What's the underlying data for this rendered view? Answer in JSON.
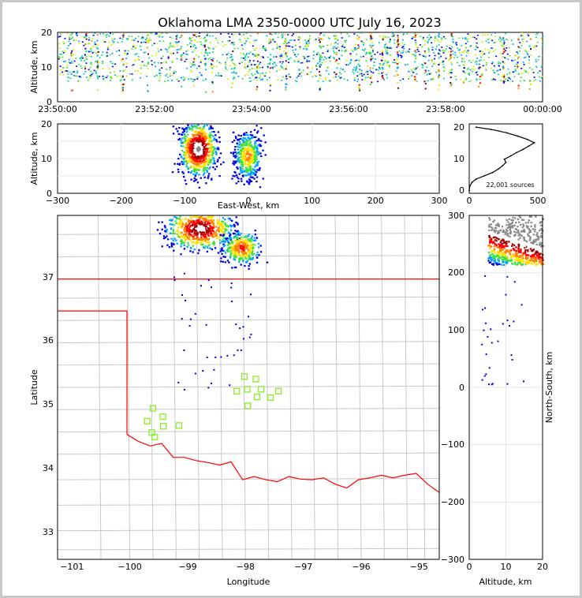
{
  "chart_data": [
    {
      "id": "alt-time",
      "type": "scatter",
      "title": "Oklahoma LMA 2350-0000 UTC July 16, 2023",
      "xlabel": "",
      "ylabel": "Altitude, km",
      "x_tick_labels": [
        "23:50:00",
        "23:52:00",
        "23:54:00",
        "23:56:00",
        "23:58:00",
        "00:00:00"
      ],
      "ylim": [
        0,
        20
      ],
      "y_ticks": [
        "0",
        "10",
        "20"
      ],
      "burst_times_min": [
        1.6,
        3.3,
        4.8,
        7.9,
        11.0,
        15.1,
        16.7,
        18.1,
        19.0,
        21.4,
        23.0,
        24.5,
        26.1,
        28.1,
        30.7,
        32.3,
        34.3,
        37.1,
        38.6,
        40.0,
        41.9,
        44.1,
        45.3,
        47.0,
        48.5,
        50.1,
        52.0,
        55.0,
        56.8,
        58.3
      ],
      "color_scale": [
        "#0000dd",
        "#00a0ff",
        "#00d8a0",
        "#40e040",
        "#c8f000",
        "#ffe000",
        "#ff8000",
        "#ff0000",
        "#800000"
      ]
    },
    {
      "id": "alt-ew",
      "type": "heatmap",
      "xlabel": "East-West, km",
      "ylabel": "Altitude, km",
      "xlim": [
        -300,
        300
      ],
      "x_ticks": [
        "−300",
        "−200",
        "−100",
        "0",
        "100",
        "200",
        "300"
      ],
      "ylim": [
        0,
        20
      ],
      "y_ticks": [
        "0",
        "10",
        "20"
      ],
      "cells": [
        {
          "ew": -80,
          "alt": 13,
          "dew": 30,
          "dalt": 8
        },
        {
          "ew": -2,
          "alt": 11,
          "dew": 22,
          "dalt": 7
        }
      ]
    },
    {
      "id": "alt-histogram",
      "type": "line",
      "annotation": "22,001 sources",
      "xlim": [
        0,
        500
      ],
      "x_ticks": [
        "0",
        "500"
      ],
      "ylim": [
        0,
        20
      ],
      "y_ticks": [
        "0",
        "10",
        "20"
      ],
      "profile": [
        {
          "alt": 0.5,
          "count": 0
        },
        {
          "alt": 2,
          "count": 5
        },
        {
          "alt": 3,
          "count": 20
        },
        {
          "alt": 4,
          "count": 50
        },
        {
          "alt": 5,
          "count": 110
        },
        {
          "alt": 6,
          "count": 170
        },
        {
          "alt": 7,
          "count": 210
        },
        {
          "alt": 8,
          "count": 240
        },
        {
          "alt": 9,
          "count": 265
        },
        {
          "alt": 10,
          "count": 255
        },
        {
          "alt": 11,
          "count": 300
        },
        {
          "alt": 12,
          "count": 340
        },
        {
          "alt": 13,
          "count": 390
        },
        {
          "alt": 14,
          "count": 430
        },
        {
          "alt": 15,
          "count": 470
        },
        {
          "alt": 16,
          "count": 420
        },
        {
          "alt": 17,
          "count": 350
        },
        {
          "alt": 18,
          "count": 270
        },
        {
          "alt": 19,
          "count": 160
        },
        {
          "alt": 19.7,
          "count": 50
        }
      ]
    },
    {
      "id": "plan-map",
      "type": "scatter",
      "xlabel": "Longitude",
      "ylabel": "Latitude",
      "xlim": [
        -101.2,
        -94.6
      ],
      "ylim": [
        32.6,
        38.0
      ],
      "x_ticks": [
        "−101",
        "−100",
        "−99",
        "−98",
        "−97",
        "−96",
        "−95"
      ],
      "y_ticks": [
        "33",
        "34",
        "35",
        "36",
        "37"
      ],
      "storm_cores": [
        {
          "lon": -98.75,
          "lat": 37.8,
          "rlon": 0.35,
          "rlat": 0.2
        },
        {
          "lon": -98.03,
          "lat": 37.5,
          "rlon": 0.2,
          "rlat": 0.16
        }
      ],
      "stations": [
        {
          "lon": -99.55,
          "lat": 34.97
        },
        {
          "lon": -99.38,
          "lat": 34.84
        },
        {
          "lon": -99.65,
          "lat": 34.77
        },
        {
          "lon": -99.37,
          "lat": 34.69
        },
        {
          "lon": -99.57,
          "lat": 34.59
        },
        {
          "lon": -99.52,
          "lat": 34.52
        },
        {
          "lon": -99.1,
          "lat": 34.7
        },
        {
          "lon": -97.97,
          "lat": 35.47
        },
        {
          "lon": -98.1,
          "lat": 35.24
        },
        {
          "lon": -97.92,
          "lat": 35.27
        },
        {
          "lon": -97.77,
          "lat": 35.43
        },
        {
          "lon": -97.68,
          "lat": 35.27
        },
        {
          "lon": -97.75,
          "lat": 35.15
        },
        {
          "lon": -97.91,
          "lat": 35.01
        },
        {
          "lon": -97.52,
          "lat": 35.14
        },
        {
          "lon": -97.38,
          "lat": 35.24
        }
      ]
    },
    {
      "id": "ns-alt",
      "type": "heatmap",
      "xlabel": "Altitude, km",
      "ylabel": "North-South, km",
      "xlim": [
        0,
        20
      ],
      "x_ticks": [
        "0",
        "10",
        "20"
      ],
      "ylim": [
        -300,
        300
      ],
      "y_ticks": [
        "−300",
        "−200",
        "−100",
        "0",
        "100",
        "200",
        "300"
      ]
    }
  ],
  "map": {
    "border_color": "#ff0000",
    "county_color": "#c8c8c8",
    "station_color": "#88ee22"
  }
}
